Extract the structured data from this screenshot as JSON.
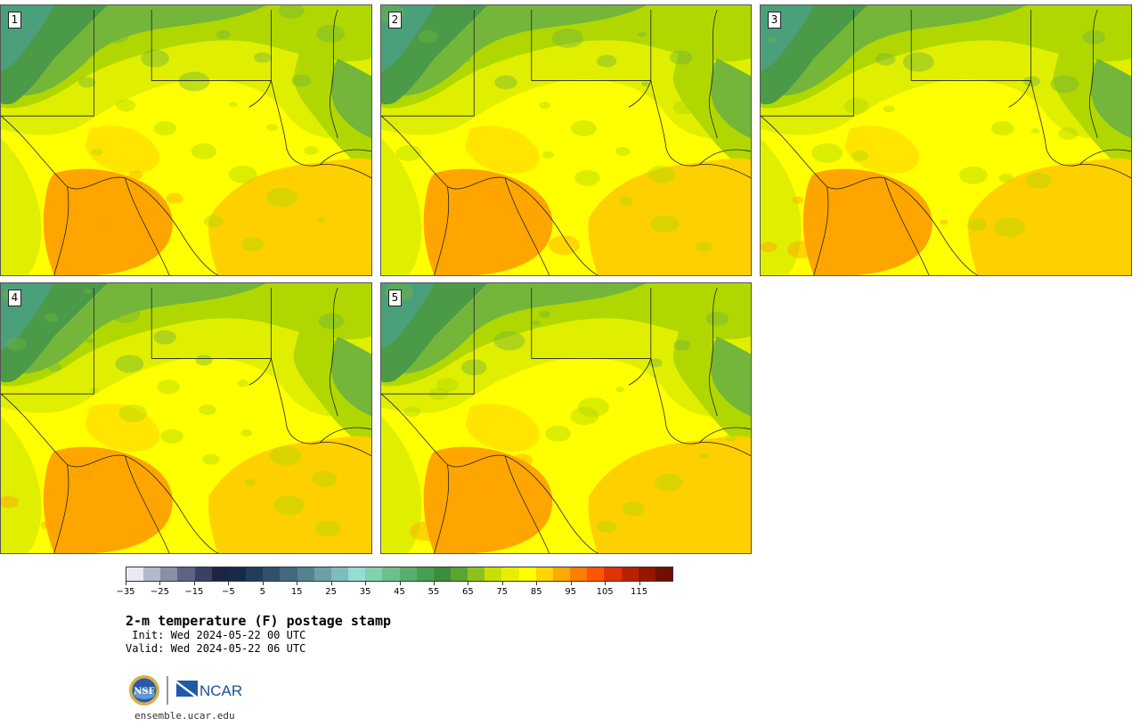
{
  "product": {
    "title": "2-m temperature (F) postage stamp",
    "init_line": " Init: Wed 2024-05-22 00 UTC",
    "valid_line": "Valid: Wed 2024-05-22 06 UTC"
  },
  "members": [
    {
      "label": "1"
    },
    {
      "label": "2"
    },
    {
      "label": "3"
    },
    {
      "label": "4"
    },
    {
      "label": "5"
    }
  ],
  "colorbar": {
    "tick_labels": [
      "−35",
      "−25",
      "−15",
      "−5",
      "5",
      "15",
      "25",
      "35",
      "45",
      "55",
      "65",
      "75",
      "85",
      "95",
      "105",
      "115"
    ],
    "colors": [
      "#e8ecf0",
      "#b4b8c8",
      "#8a8fa6",
      "#5d6584",
      "#394263",
      "#1c2542",
      "#182a4a",
      "#223c5c",
      "#30506e",
      "#42697f",
      "#55828f",
      "#6aa0a6",
      "#7fbcbc",
      "#96dcd2",
      "#82d2b0",
      "#6cc08c",
      "#58ae6e",
      "#44a050",
      "#3a8e3a",
      "#5aa530",
      "#8dc21e",
      "#c8e000",
      "#e8f000",
      "#ffff00",
      "#ffd400",
      "#ffaa00",
      "#ff7d00",
      "#ff5500",
      "#e03400",
      "#bb2000",
      "#961600",
      "#701000"
    ]
  },
  "logos": {
    "nsf_text": "NSF",
    "ncar_text": "NCAR"
  },
  "footer": {
    "url": "ensemble.ucar.edu"
  },
  "colors": {
    "gulf": "#ffd000",
    "hot_orange": "#ffa500",
    "yellow": "#ffff00",
    "yellow_green": "#e0ef00",
    "light_green": "#b0d800",
    "green": "#74b63a",
    "dark_green": "#4a9a48",
    "teal": "#4aa07a"
  }
}
